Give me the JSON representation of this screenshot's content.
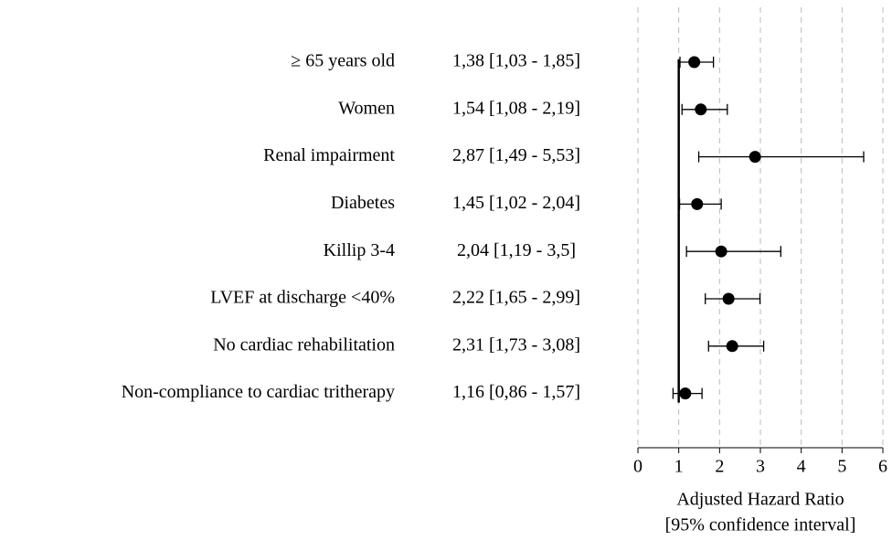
{
  "chart_data": {
    "type": "forest",
    "categories": [
      "≥ 65 years old",
      "Women",
      "Renal impairment",
      "Diabetes",
      "Killip 3-4",
      "LVEF at discharge <40%",
      "No cardiac rehabilitation",
      "Non-compliance to cardiac tritherapy"
    ],
    "values": [
      1.38,
      1.54,
      2.87,
      1.45,
      2.04,
      2.22,
      2.31,
      1.16
    ],
    "lower": [
      1.03,
      1.08,
      1.49,
      1.02,
      1.19,
      1.65,
      1.73,
      0.86
    ],
    "upper": [
      1.85,
      2.19,
      5.53,
      2.04,
      3.5,
      2.99,
      3.08,
      1.57
    ],
    "value_labels": [
      "1,38 [1,03 - 1,85]",
      "1,54 [1,08 - 2,19]",
      "2,87 [1,49 - 5,53]",
      "1,45 [1,02 - 2,04]",
      "2,04 [1,19 - 3,5]",
      "2,22 [1,65 - 2,99]",
      "2,31 [1,73 - 3,08]",
      "1,16 [0,86 - 1,57]"
    ],
    "xlabel": [
      "Adjusted Hazard Ratio",
      "[95% confidence interval]"
    ],
    "xlim": [
      0,
      6
    ],
    "xticks": [
      0,
      1,
      2,
      3,
      4,
      5,
      6
    ],
    "reference_line": 1,
    "grid": true,
    "color": "#000000"
  }
}
